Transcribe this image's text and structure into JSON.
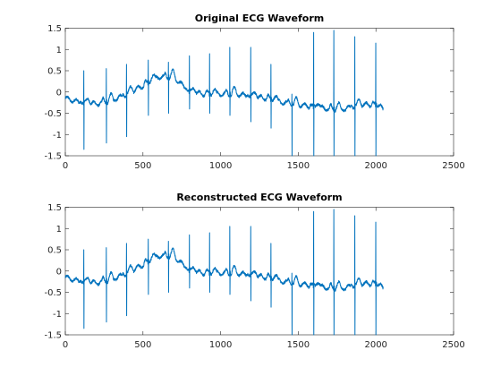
{
  "chart_data": [
    {
      "type": "line",
      "title": "Original ECG Waveform",
      "xlabel": "",
      "ylabel": "",
      "xlim": [
        0,
        2500
      ],
      "ylim": [
        -1.5,
        1.5
      ],
      "x_ticks": [
        0,
        500,
        1000,
        1500,
        2000,
        2500
      ],
      "y_ticks": [
        -1.5,
        -1,
        -0.5,
        0,
        0.5,
        1,
        1.5
      ],
      "x_tick_labels": [
        "0",
        "500",
        "1000",
        "1500",
        "2000",
        "2500"
      ],
      "y_tick_labels": [
        "-1.5",
        "-1",
        "-0.5",
        "0",
        "0.5",
        "1",
        "1.5"
      ],
      "grid": false,
      "series": [
        {
          "color": "#0072BD",
          "sample_count": 2048,
          "baseline": [
            [
              0,
              -0.15
            ],
            [
              100,
              -0.25
            ],
            [
              200,
              -0.28
            ],
            [
              300,
              -0.2
            ],
            [
              400,
              -0.05
            ],
            [
              500,
              0.15
            ],
            [
              600,
              0.35
            ],
            [
              700,
              0.35
            ],
            [
              800,
              0.0
            ],
            [
              900,
              -0.05
            ],
            [
              1000,
              -0.05
            ],
            [
              1100,
              -0.05
            ],
            [
              1200,
              -0.1
            ],
            [
              1300,
              -0.15
            ],
            [
              1400,
              -0.25
            ],
            [
              1500,
              -0.3
            ],
            [
              1600,
              -0.35
            ],
            [
              1700,
              -0.4
            ],
            [
              1800,
              -0.4
            ],
            [
              1900,
              -0.3
            ],
            [
              2000,
              -0.3
            ],
            [
              2048,
              -0.45
            ]
          ],
          "beats": [
            {
              "x": 120,
              "peak": 0.5,
              "trough": -1.35
            },
            {
              "x": 265,
              "peak": 0.55,
              "trough": -1.2
            },
            {
              "x": 395,
              "peak": 0.65,
              "trough": -1.05
            },
            {
              "x": 535,
              "peak": 0.75,
              "trough": -0.55
            },
            {
              "x": 665,
              "peak": 0.7,
              "trough": -0.5
            },
            {
              "x": 800,
              "peak": 0.85,
              "trough": -0.4
            },
            {
              "x": 930,
              "peak": 0.9,
              "trough": -0.5
            },
            {
              "x": 1060,
              "peak": 1.05,
              "trough": -0.55
            },
            {
              "x": 1195,
              "peak": 1.05,
              "trough": -0.7
            },
            {
              "x": 1325,
              "peak": 0.65,
              "trough": -0.85
            },
            {
              "x": 1460,
              "peak": -0.05,
              "trough": -1.5
            },
            {
              "x": 1600,
              "peak": 1.4,
              "trough": -1.5
            },
            {
              "x": 1730,
              "peak": 1.45,
              "trough": -1.5
            },
            {
              "x": 1865,
              "peak": 1.3,
              "trough": -1.5
            },
            {
              "x": 2000,
              "peak": 1.15,
              "trough": -1.5
            }
          ]
        }
      ]
    },
    {
      "type": "line",
      "title": "Reconstructed ECG Waveform",
      "xlabel": "",
      "ylabel": "",
      "xlim": [
        0,
        2500
      ],
      "ylim": [
        -1.5,
        1.5
      ],
      "x_ticks": [
        0,
        500,
        1000,
        1500,
        2000,
        2500
      ],
      "y_ticks": [
        -1.5,
        -1,
        -0.5,
        0,
        0.5,
        1,
        1.5
      ],
      "x_tick_labels": [
        "0",
        "500",
        "1000",
        "1500",
        "2000",
        "2500"
      ],
      "y_tick_labels": [
        "-1.5",
        "-1",
        "-0.5",
        "0",
        "0.5",
        "1",
        "1.5"
      ],
      "grid": false,
      "series": [
        {
          "color": "#0072BD",
          "sample_count": 2048,
          "baseline": [
            [
              0,
              -0.15
            ],
            [
              100,
              -0.25
            ],
            [
              200,
              -0.28
            ],
            [
              300,
              -0.2
            ],
            [
              400,
              -0.05
            ],
            [
              500,
              0.15
            ],
            [
              600,
              0.35
            ],
            [
              700,
              0.35
            ],
            [
              800,
              0.0
            ],
            [
              900,
              -0.05
            ],
            [
              1000,
              -0.05
            ],
            [
              1100,
              -0.05
            ],
            [
              1200,
              -0.1
            ],
            [
              1300,
              -0.15
            ],
            [
              1400,
              -0.25
            ],
            [
              1500,
              -0.3
            ],
            [
              1600,
              -0.35
            ],
            [
              1700,
              -0.4
            ],
            [
              1800,
              -0.4
            ],
            [
              1900,
              -0.3
            ],
            [
              2000,
              -0.3
            ],
            [
              2048,
              -0.45
            ]
          ],
          "beats": [
            {
              "x": 120,
              "peak": 0.5,
              "trough": -1.35
            },
            {
              "x": 265,
              "peak": 0.55,
              "trough": -1.2
            },
            {
              "x": 395,
              "peak": 0.65,
              "trough": -1.05
            },
            {
              "x": 535,
              "peak": 0.75,
              "trough": -0.55
            },
            {
              "x": 665,
              "peak": 0.7,
              "trough": -0.5
            },
            {
              "x": 800,
              "peak": 0.85,
              "trough": -0.4
            },
            {
              "x": 930,
              "peak": 0.9,
              "trough": -0.5
            },
            {
              "x": 1060,
              "peak": 1.05,
              "trough": -0.55
            },
            {
              "x": 1195,
              "peak": 1.05,
              "trough": -0.7
            },
            {
              "x": 1325,
              "peak": 0.65,
              "trough": -0.85
            },
            {
              "x": 1460,
              "peak": -0.05,
              "trough": -1.5
            },
            {
              "x": 1600,
              "peak": 1.4,
              "trough": -1.5
            },
            {
              "x": 1730,
              "peak": 1.45,
              "trough": -1.5
            },
            {
              "x": 1865,
              "peak": 1.3,
              "trough": -1.5
            },
            {
              "x": 2000,
              "peak": 1.15,
              "trough": -1.5
            }
          ]
        }
      ]
    }
  ]
}
